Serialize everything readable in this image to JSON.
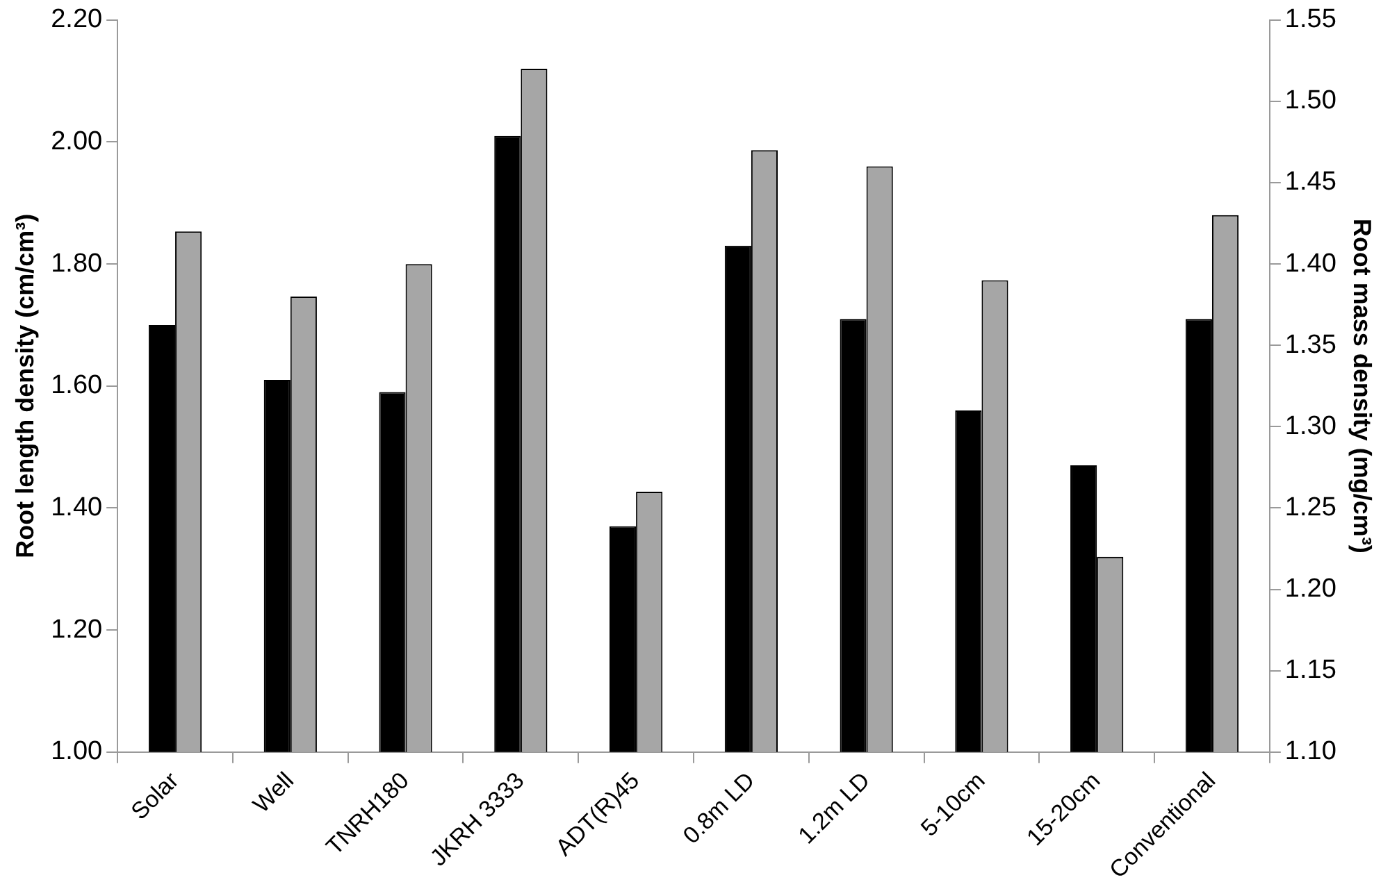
{
  "chart_data": {
    "type": "bar",
    "ylabel": "Root length density (cm/cm³)",
    "y2label": "Root mass density (mg/cm³)",
    "categories": [
      "Solar",
      "Well",
      "TNRH180",
      "JKRH 3333",
      "ADT(R)45",
      "0.8m LD",
      "1.2m LD",
      "5-10cm",
      "15-20cm",
      "Conventional"
    ],
    "series": [
      {
        "color": "#000000",
        "values": [
          1.7,
          1.61,
          1.59,
          2.01,
          1.37,
          1.83,
          1.71,
          1.56,
          1.47,
          1.71
        ]
      },
      {
        "color": "#a6a6a6",
        "axis": "y2",
        "values": [
          1.42,
          1.38,
          1.4,
          1.52,
          1.26,
          1.47,
          1.46,
          1.39,
          1.22,
          1.43
        ]
      }
    ],
    "ylim": [
      1.0,
      2.2
    ],
    "yticks": [
      {
        "value": 1.0,
        "label": "1.00"
      },
      {
        "value": 1.2,
        "label": "1.20"
      },
      {
        "value": 1.4,
        "label": "1.40"
      },
      {
        "value": 1.6,
        "label": "1.60"
      },
      {
        "value": 1.8,
        "label": "1.80"
      },
      {
        "value": 2.0,
        "label": "2.00"
      },
      {
        "value": 2.2,
        "label": "2.20"
      }
    ],
    "y2lim": [
      1.1,
      1.55
    ],
    "y2ticks": [
      {
        "value": 1.1,
        "label": "1.10"
      },
      {
        "value": 1.15,
        "label": "1.15"
      },
      {
        "value": 1.2,
        "label": "1.20"
      },
      {
        "value": 1.25,
        "label": "1.25"
      },
      {
        "value": 1.3,
        "label": "1.30"
      },
      {
        "value": 1.35,
        "label": "1.35"
      },
      {
        "value": 1.4,
        "label": "1.40"
      },
      {
        "value": 1.45,
        "label": "1.45"
      },
      {
        "value": 1.5,
        "label": "1.50"
      },
      {
        "value": 1.55,
        "label": "1.55"
      }
    ],
    "grid": false,
    "legend": false
  }
}
